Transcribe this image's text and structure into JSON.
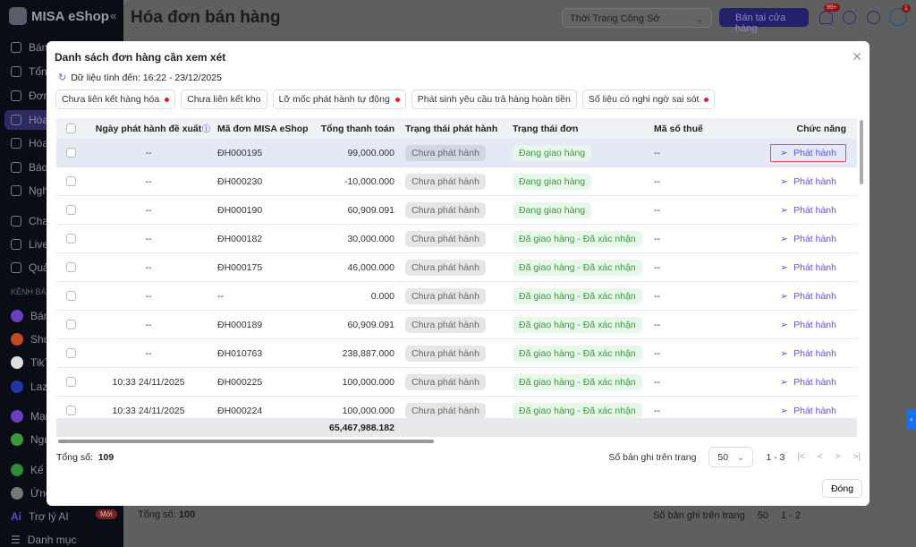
{
  "sidebar": {
    "logo": "MISA eShop",
    "items": [
      "Bán tại cửa",
      "Tổng",
      "Đơn",
      "Hóa",
      "Hóa",
      "Báo",
      "Nghi",
      "Chat",
      "Live",
      "Quả"
    ],
    "section": "KÊNH BÁN",
    "channels": [
      "Bán",
      "Shop",
      "TikT",
      "Laza",
      "Mạn",
      "Ngu",
      "Kế t",
      "Ứng"
    ],
    "ai": "Trợ lý AI",
    "ai_badge": "Mới",
    "catalog": "Danh mục"
  },
  "header": {
    "title": "Hóa đơn bán hàng",
    "shop": "Thời Trang Công Sở",
    "store_button": "Bán tại cửa hàng",
    "notif_badge": "99+",
    "avatar_badge": "1"
  },
  "background": {
    "total_label": "Tổng số:",
    "total": "100",
    "per_page_label": "Số bản ghi trên trang",
    "per_page": "50",
    "range": "1 - 2"
  },
  "modal": {
    "title": "Danh sách đơn hàng cần xem xét",
    "data_as_of": "Dữ liệu tính đến: 16:22 - 23/12/2025",
    "chips": [
      {
        "label": "Chưa liên kết hàng hóa",
        "dot": true
      },
      {
        "label": "Chưa liên kết kho",
        "dot": false
      },
      {
        "label": "Lỡ mốc phát hành tự động",
        "dot": true
      },
      {
        "label": "Phát sinh yêu cầu trả hàng hoàn tiền",
        "dot": false
      },
      {
        "label": "Số liệu có nghi ngờ sai sót",
        "dot": true
      }
    ],
    "columns": [
      "Ngày phát hành đề xuất",
      "Mã đơn MISA eShop",
      "Tổng thanh toán",
      "Trạng thái phát hành",
      "Trạng thái đơn",
      "Mã số thuế",
      "Chức năng"
    ],
    "rows": [
      [
        "--",
        "ĐH000195",
        "99,000.000",
        "Chưa phát hành",
        "Đang giao hàng",
        "--",
        "Phát hành"
      ],
      [
        "--",
        "ĐH000230",
        "-10,000.000",
        "Chưa phát hành",
        "Đang giao hàng",
        "--",
        "Phát hành"
      ],
      [
        "--",
        "ĐH000190",
        "60,909.091",
        "Chưa phát hành",
        "Đang giao hàng",
        "--",
        "Phát hành"
      ],
      [
        "--",
        "ĐH000182",
        "30,000.000",
        "Chưa phát hành",
        "Đã giao hàng - Đã xác nhận",
        "--",
        "Phát hành"
      ],
      [
        "--",
        "ĐH000175",
        "46,000.000",
        "Chưa phát hành",
        "Đã giao hàng - Đã xác nhận",
        "--",
        "Phát hành"
      ],
      [
        "--",
        "--",
        "0.000",
        "Chưa phát hành",
        "Đã giao hàng - Đã xác nhận",
        "--",
        "Phát hành"
      ],
      [
        "--",
        "ĐH000189",
        "60,909.091",
        "Chưa phát hành",
        "Đã giao hàng - Đã xác nhận",
        "--",
        "Phát hành"
      ],
      [
        "--",
        "ĐH010763",
        "238,887.000",
        "Chưa phát hành",
        "Đã giao hàng - Đã xác nhận",
        "--",
        "Phát hành"
      ],
      [
        "10:33 24/11/2025",
        "ĐH000225",
        "100,000.000",
        "Chưa phát hành",
        "Đã giao hàng - Đã xác nhận",
        "--",
        "Phát hành"
      ],
      [
        "10:33 24/11/2025",
        "ĐH000224",
        "100,000.000",
        "Chưa phát hành",
        "Đã giao hàng - Đã xác nhận",
        "--",
        "Phát hành"
      ]
    ],
    "sum_total": "65,467,988.182",
    "total_label": "Tổng số:",
    "total": "109",
    "per_page_label": "Số bản ghi trên trang",
    "per_page": "50",
    "range": "1 - 3",
    "close": "Đóng"
  }
}
